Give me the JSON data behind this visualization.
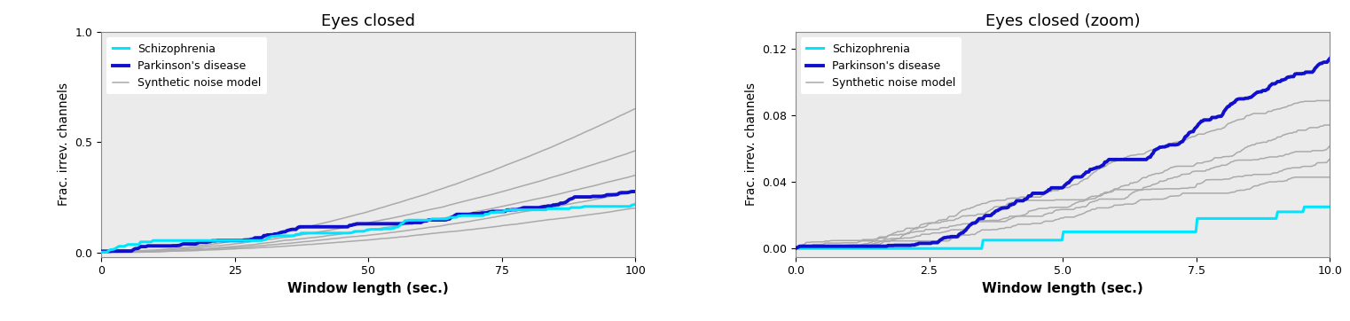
{
  "title_left": "Eyes closed",
  "title_right": "Eyes closed (zoom)",
  "xlabel": "Window length (sec.)",
  "ylabel": "Frac. irrev. channels",
  "legend_labels": [
    "Schizophrenia",
    "Parkinson's disease",
    "Synthetic noise model"
  ],
  "schizophrenia_color": "#00E5FF",
  "parkinson_color": "#1010CC",
  "synthetic_color": "#AAAAAA",
  "left_xlim": [
    0,
    100
  ],
  "left_ylim": [
    -0.02,
    1.0
  ],
  "right_xlim": [
    0,
    10.0
  ],
  "right_ylim": [
    -0.005,
    0.13
  ],
  "left_yticks": [
    0.0,
    0.5,
    1.0
  ],
  "right_yticks": [
    0.0,
    0.04,
    0.08,
    0.12
  ],
  "left_xticks": [
    0,
    25,
    50,
    75,
    100
  ],
  "right_xticks": [
    0.0,
    2.5,
    5.0,
    7.5,
    10.0
  ],
  "background_color": "#EBEBEB",
  "schizophrenia_lw": 2.2,
  "parkinson_lw": 2.8,
  "synthetic_lw": 1.1,
  "num_synthetic": 5
}
